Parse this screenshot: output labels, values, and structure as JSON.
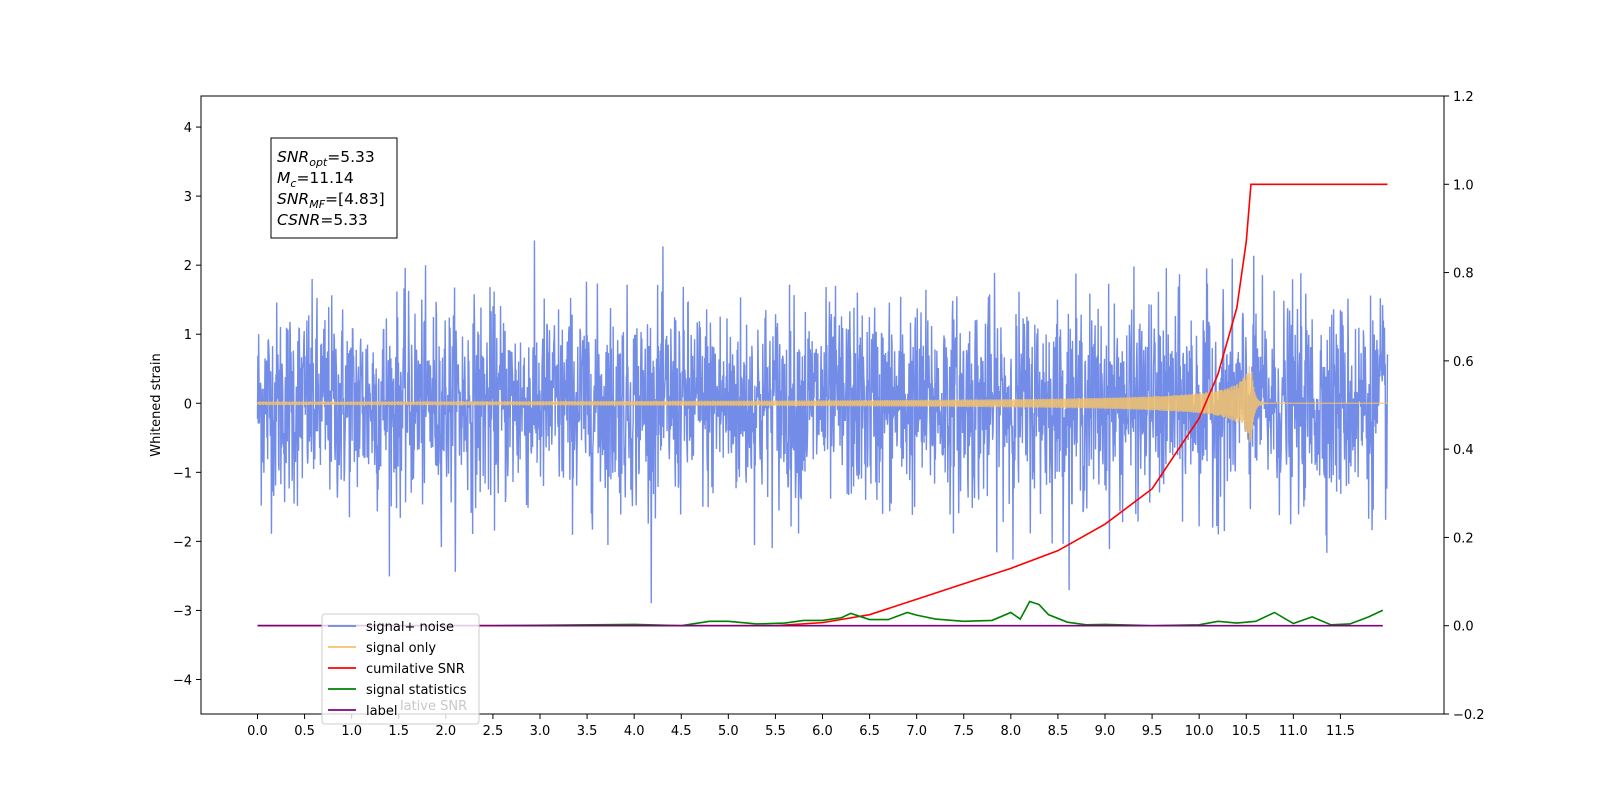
{
  "chart_data": {
    "type": "line",
    "ylabel": "Whitened strain",
    "xlabel": "",
    "xlim": [
      -0.6,
      12.6
    ],
    "ylim": [
      -4.5,
      4.45
    ],
    "ylim_right": [
      -0.2,
      1.2
    ],
    "x_ticks": [
      0.0,
      0.5,
      1.0,
      1.5,
      2.0,
      2.5,
      3.0,
      3.5,
      4.0,
      4.5,
      5.0,
      5.5,
      6.0,
      6.5,
      7.0,
      7.5,
      8.0,
      8.5,
      9.0,
      9.5,
      10.0,
      10.5,
      11.0,
      11.5
    ],
    "x_tick_labels": [
      "0.0",
      "0.5",
      "1.0",
      "1.5",
      "2.0",
      "2.5",
      "3.0",
      "3.5",
      "4.0",
      "4.5",
      "5.0",
      "5.5",
      "6.0",
      "6.5",
      "7.0",
      "7.5",
      "8.0",
      "8.5",
      "9.0",
      "9.5",
      "10.0",
      "10.5",
      "11.0",
      "11.5"
    ],
    "y_ticks_left": [
      -4,
      -3,
      -2,
      -1,
      0,
      1,
      2,
      3,
      4
    ],
    "y_tick_labels_left": [
      "−4",
      "−3",
      "−2",
      "−1",
      "0",
      "1",
      "2",
      "3",
      "4"
    ],
    "y_ticks_right": [
      -0.2,
      0.0,
      0.2,
      0.4,
      0.6,
      0.8,
      1.0,
      1.2
    ],
    "y_tick_labels_right": [
      "−0.2",
      "0.0",
      "0.2",
      "0.4",
      "0.6",
      "0.8",
      "1.0",
      "1.2"
    ],
    "x_range_data": [
      0.0,
      12.0
    ],
    "series": [
      {
        "name": "signal+ noise",
        "axis": "left",
        "color": "#6a86e6",
        "kind": "noise",
        "sigma": 0.72
      },
      {
        "name": "signal only",
        "axis": "left",
        "color": "#f5c26b",
        "kind": "chirp",
        "merger_time": 10.55,
        "peak_amplitude": 0.65
      },
      {
        "name": "cumilative SNR",
        "axis": "right",
        "color": "#ff0000",
        "x": [
          0.0,
          5.5,
          6.0,
          6.5,
          7.0,
          7.5,
          8.0,
          8.5,
          9.0,
          9.5,
          10.0,
          10.2,
          10.4,
          10.5,
          10.55,
          11.0,
          12.0
        ],
        "y": [
          0.0,
          0.0,
          0.007,
          0.025,
          0.06,
          0.095,
          0.13,
          0.17,
          0.23,
          0.31,
          0.47,
          0.57,
          0.72,
          0.87,
          1.0,
          1.0,
          1.0
        ]
      },
      {
        "name": "signal statistics",
        "axis": "right",
        "color": "#008000",
        "x": [
          0.0,
          2.5,
          4.0,
          4.5,
          4.8,
          5.0,
          5.3,
          5.6,
          5.8,
          6.0,
          6.2,
          6.3,
          6.5,
          6.7,
          6.8,
          6.9,
          7.0,
          7.2,
          7.5,
          7.8,
          8.0,
          8.1,
          8.2,
          8.3,
          8.4,
          8.6,
          8.8,
          9.0,
          9.5,
          10.0,
          10.2,
          10.4,
          10.6,
          10.8,
          11.0,
          11.2,
          11.4,
          11.6,
          11.8,
          11.95
        ],
        "y": [
          0.0,
          0.0,
          0.003,
          0.0,
          0.01,
          0.01,
          0.004,
          0.006,
          0.012,
          0.012,
          0.018,
          0.028,
          0.014,
          0.014,
          0.022,
          0.03,
          0.024,
          0.015,
          0.01,
          0.012,
          0.03,
          0.015,
          0.055,
          0.048,
          0.025,
          0.008,
          0.002,
          0.003,
          0.0,
          0.002,
          0.01,
          0.006,
          0.01,
          0.03,
          0.005,
          0.02,
          0.002,
          0.004,
          0.02,
          0.035
        ]
      },
      {
        "name": "label",
        "axis": "right",
        "color": "#800080",
        "x": [
          0.0,
          11.95
        ],
        "y": [
          0.0,
          0.0
        ]
      }
    ],
    "legend": {
      "placement": "lower-left",
      "entries": [
        "signal+ noise",
        "signal only",
        "cumilative SNR",
        "signal statistics",
        "label"
      ],
      "overlapped_text": "lative SNR"
    },
    "annotation": {
      "lines": [
        {
          "symbol": "SNR",
          "subscript": "opt",
          "value": "=5.33"
        },
        {
          "symbol": "M",
          "subscript": "c",
          "value": "=11.14"
        },
        {
          "symbol": "SNR",
          "subscript": "MF",
          "value": "=[4.83]"
        },
        {
          "symbol": "CSNR",
          "subscript": "",
          "value": "=5.33"
        }
      ]
    }
  }
}
